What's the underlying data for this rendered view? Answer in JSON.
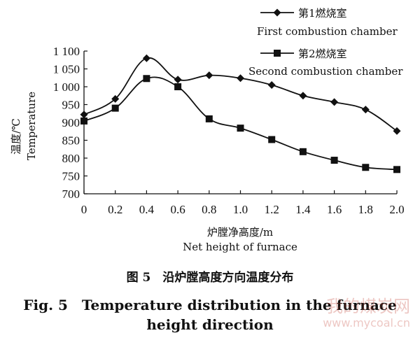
{
  "chart_data": {
    "type": "line",
    "x": [
      0,
      0.2,
      0.4,
      0.6,
      0.8,
      1.0,
      1.2,
      1.4,
      1.6,
      1.8,
      2.0
    ],
    "series": [
      {
        "name_cn": "第1燃烧室",
        "name": "First combustion chamber",
        "marker": "diamond",
        "values": [
          922,
          966,
          1080,
          1020,
          1032,
          1024,
          1005,
          975,
          957,
          936,
          876
        ]
      },
      {
        "name_cn": "第2燃烧室",
        "name": "Second combustion chamber",
        "marker": "square",
        "values": [
          904,
          940,
          1023,
          1000,
          910,
          884,
          852,
          818,
          794,
          774,
          768
        ]
      }
    ],
    "xlim": [
      0,
      2.0
    ],
    "ylim": [
      700,
      1100
    ],
    "x_ticks": [
      "0",
      "0.2",
      "0.4",
      "0.6",
      "0.8",
      "1.0",
      "1.2",
      "1.4",
      "1.6",
      "1.8",
      "2.0"
    ],
    "y_ticks": [
      "700",
      "750",
      "800",
      "850",
      "900",
      "950",
      "1 000",
      "1 050",
      "1 100"
    ],
    "xlabel_cn": "炉膛净高度/m",
    "xlabel": "Net height of furnace",
    "ylabel_cn": "温度/℃",
    "ylabel": "Temperature",
    "grid": false,
    "legend_position": "top-right"
  },
  "caption": {
    "cn": "图 5　沿炉膛高度方向温度分布",
    "en_line1": "Fig. 5　Temperature distribution in the furnace",
    "en_line2": "height direction"
  },
  "watermark": {
    "cn": "我的煤炭网",
    "url": "www.mycoal.cn",
    "color": "#c0392b"
  }
}
